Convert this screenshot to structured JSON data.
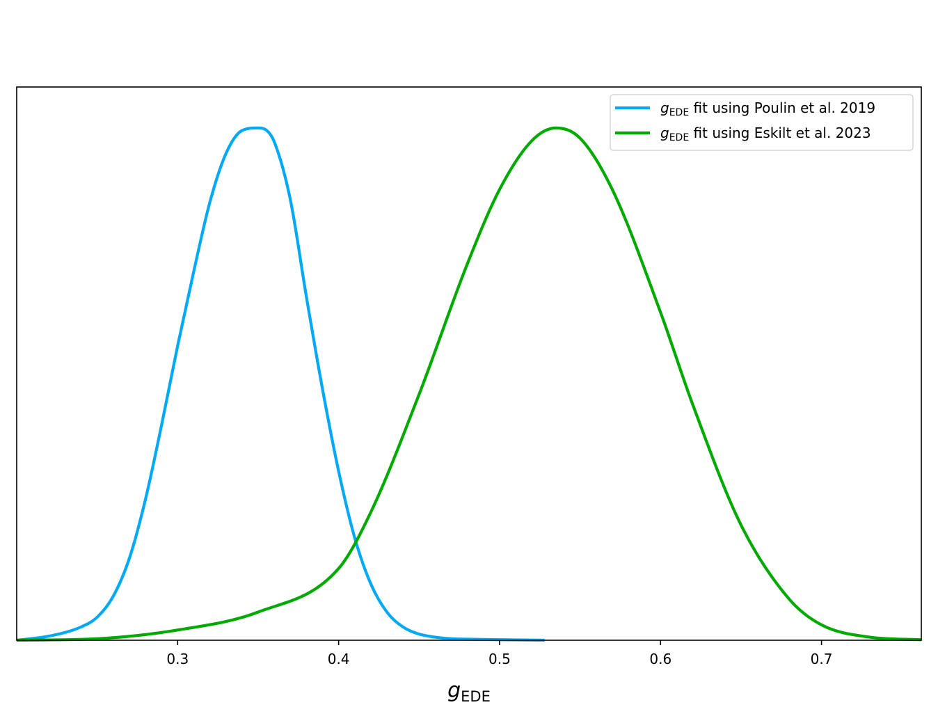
{
  "chart_data": {
    "type": "line",
    "title": "",
    "xlabel": {
      "main": "g",
      "sub": "EDE"
    },
    "ylabel": "",
    "xlim": [
      0.2,
      0.762
    ],
    "ylim": [
      0,
      1.08
    ],
    "xticks": [
      {
        "value": 0.3,
        "label": "0.3"
      },
      {
        "value": 0.4,
        "label": "0.4"
      },
      {
        "value": 0.5,
        "label": "0.5"
      },
      {
        "value": 0.6,
        "label": "0.6"
      },
      {
        "value": 0.7,
        "label": "0.7"
      }
    ],
    "y_ticks_shown": false,
    "grid": false,
    "legend_position": "top-right",
    "series": [
      {
        "name": "g_EDE fit using Poulin et al. 2019",
        "legend": {
          "main": "g",
          "sub": "EDE",
          "text": " fit using Poulin et al. 2019"
        },
        "color": "#03a9f4",
        "x": [
          0.2,
          0.22,
          0.24,
          0.25,
          0.26,
          0.27,
          0.28,
          0.29,
          0.3,
          0.31,
          0.32,
          0.33,
          0.34,
          0.35,
          0.355,
          0.36,
          0.37,
          0.38,
          0.39,
          0.4,
          0.41,
          0.42,
          0.43,
          0.44,
          0.45,
          0.46,
          0.47,
          0.48,
          0.5,
          0.528
        ],
        "y": [
          0.0,
          0.008,
          0.026,
          0.045,
          0.086,
          0.16,
          0.275,
          0.42,
          0.575,
          0.72,
          0.855,
          0.95,
          0.995,
          1.0,
          0.996,
          0.973,
          0.86,
          0.67,
          0.49,
          0.33,
          0.2,
          0.11,
          0.055,
          0.026,
          0.012,
          0.006,
          0.003,
          0.002,
          0.001,
          0.0
        ]
      },
      {
        "name": "g_EDE fit using Eskilt et al. 2023",
        "legend": {
          "main": "g",
          "sub": "EDE",
          "text": " fit using Eskilt et al. 2023"
        },
        "color": "#00aa00",
        "x": [
          0.2,
          0.25,
          0.3,
          0.35,
          0.4,
          0.42,
          0.45,
          0.48,
          0.5,
          0.52,
          0.535,
          0.55,
          0.57,
          0.6,
          0.62,
          0.65,
          0.68,
          0.7,
          0.73,
          0.762
        ],
        "y": [
          0.0,
          0.003,
          0.02,
          0.055,
          0.14,
          0.25,
          0.48,
          0.735,
          0.88,
          0.975,
          1.0,
          0.98,
          0.88,
          0.64,
          0.46,
          0.225,
          0.08,
          0.03,
          0.006,
          0.001
        ]
      }
    ]
  }
}
